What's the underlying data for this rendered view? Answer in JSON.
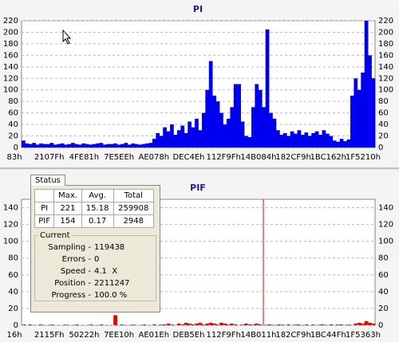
{
  "chart_data": [
    {
      "type": "bar",
      "title": "PI",
      "color": "#0000ee",
      "grid": true,
      "ylim": [
        0,
        220
      ],
      "yticks": [
        0,
        20,
        40,
        60,
        80,
        100,
        120,
        140,
        160,
        180,
        200,
        220
      ],
      "xtick_labels": [
        "83h",
        "2107Fh",
        "4FE81h",
        "7E5EEh",
        "AE078h",
        "DEC4Eh",
        "112F9Fh",
        "14B084h",
        "182CF9h",
        "1BC162h",
        "1F5210h"
      ],
      "values": [
        12,
        7,
        6,
        8,
        5,
        7,
        6,
        6,
        8,
        5,
        6,
        7,
        5,
        6,
        8,
        6,
        5,
        7,
        6,
        5,
        6,
        7,
        8,
        5,
        6,
        6,
        7,
        5,
        6,
        8,
        5,
        7,
        6,
        5,
        6,
        7,
        8,
        15,
        25,
        20,
        35,
        28,
        40,
        22,
        30,
        38,
        25,
        45,
        35,
        50,
        30,
        60,
        100,
        150,
        90,
        80,
        60,
        40,
        50,
        70,
        110,
        110,
        45,
        20,
        18,
        70,
        110,
        100,
        70,
        205,
        60,
        50,
        30,
        22,
        25,
        20,
        28,
        24,
        30,
        22,
        26,
        20,
        25,
        28,
        22,
        30,
        24,
        20,
        12,
        10,
        15,
        11,
        14,
        90,
        120,
        100,
        130,
        220,
        160,
        120
      ]
    },
    {
      "type": "bar",
      "title": "PIF",
      "color": "#ee0000",
      "grid": true,
      "ylim": [
        0,
        150
      ],
      "yticks": [
        0,
        20,
        40,
        60,
        80,
        100,
        120,
        140
      ],
      "xtick_labels": [
        "16h",
        "2115Fh",
        "50222h",
        "7EE10h",
        "AE01Eh",
        "DEB5Eh",
        "112F9Fh",
        "14B011h",
        "182CF9h",
        "1BC44Fh",
        "1F5363h"
      ],
      "values": [
        1,
        0,
        1,
        0,
        0,
        1,
        0,
        0,
        1,
        0,
        0,
        0,
        1,
        0,
        0,
        1,
        0,
        0,
        0,
        1,
        0,
        0,
        1,
        0,
        0,
        0,
        12,
        0,
        1,
        0,
        0,
        1,
        0,
        0,
        1,
        0,
        0,
        1,
        0,
        1,
        1,
        2,
        1,
        0,
        2,
        1,
        3,
        2,
        1,
        2,
        3,
        1,
        2,
        3,
        2,
        1,
        3,
        2,
        1,
        2,
        1,
        0,
        1,
        2,
        1,
        1,
        2,
        1,
        0,
        1,
        1,
        0,
        1,
        1,
        0,
        1,
        0,
        1,
        1,
        0,
        1,
        0,
        1,
        0,
        1,
        1,
        0,
        1,
        0,
        1,
        1,
        0,
        1,
        0,
        2,
        3,
        2,
        5,
        3,
        2
      ]
    }
  ],
  "status": {
    "tab": "Status",
    "columns": [
      "Max.",
      "Avg.",
      "Total"
    ],
    "rows": [
      [
        "PI",
        221,
        15.18,
        259908
      ],
      [
        "PIF",
        154,
        0.17,
        2948
      ]
    ],
    "current": {
      "title": "Current",
      "items": [
        [
          "Sampling -",
          "119438"
        ],
        [
          "Errors -",
          "0"
        ],
        [
          "Speed -",
          "4.1  X"
        ],
        [
          "Position -",
          "2211247"
        ],
        [
          "Progress -",
          "100.0 %"
        ]
      ]
    }
  }
}
